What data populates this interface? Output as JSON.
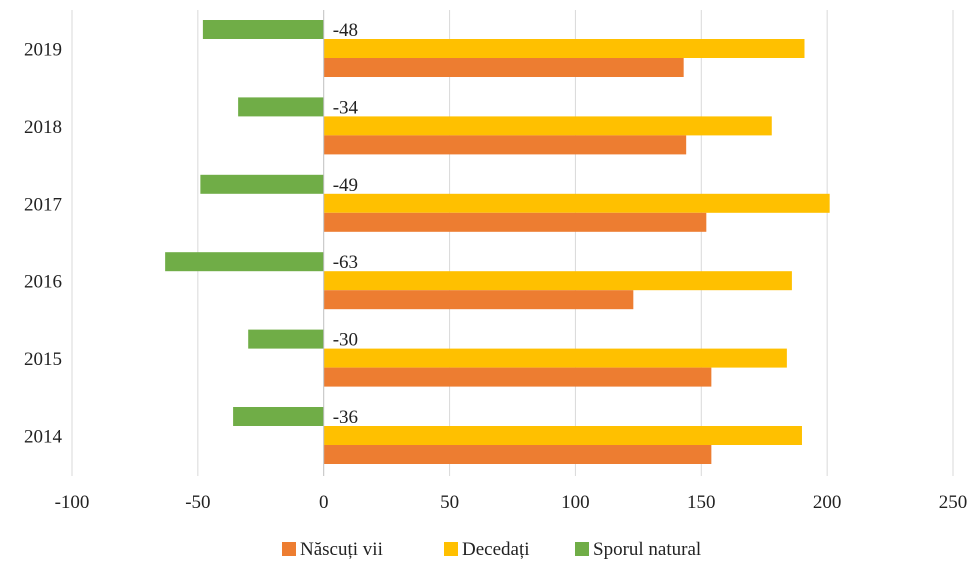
{
  "chart_data": {
    "type": "bar",
    "orientation": "horizontal",
    "categories": [
      "2014",
      "2015",
      "2016",
      "2017",
      "2018",
      "2019"
    ],
    "series": [
      {
        "name": "Născuți vii",
        "color": "#ED7D31",
        "values": [
          154,
          154,
          123,
          152,
          144,
          143
        ]
      },
      {
        "name": "Decedați",
        "color": "#FFC000",
        "values": [
          190,
          184,
          186,
          201,
          178,
          191
        ]
      },
      {
        "name": "Sporul natural",
        "color": "#70AD47",
        "values": [
          -36,
          -30,
          -63,
          -49,
          -34,
          -48
        ],
        "data_labels": [
          "-36",
          "-30",
          "-63",
          "-49",
          "-34",
          "-48"
        ]
      }
    ],
    "x_ticks": [
      "-100",
      "-50",
      "0",
      "50",
      "100",
      "150",
      "200",
      "250"
    ],
    "xlim": [
      -100,
      250
    ],
    "grid": "vertical",
    "legend": "bottom"
  }
}
